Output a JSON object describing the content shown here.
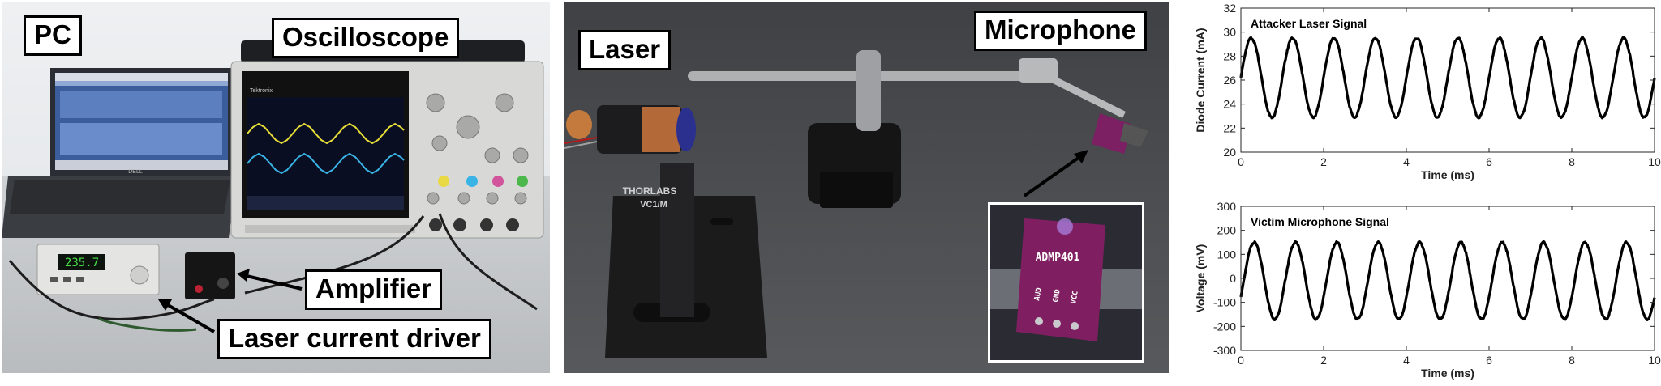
{
  "left_photo": {
    "labels": {
      "pc": "PC",
      "oscilloscope": "Oscilloscope",
      "amplifier": "Amplifier",
      "driver": "Laser current driver"
    },
    "driver_display": "235.7",
    "laptop_brand": "DELL",
    "scope_brand": "Tektronix"
  },
  "middle_photo": {
    "labels": {
      "laser": "Laser",
      "microphone": "Microphone"
    },
    "mount_brand": "THORLABS",
    "mount_model": "VC1/M",
    "inset": {
      "chip": "ADMP401",
      "pins": [
        "AUD",
        "GND",
        "VCC"
      ]
    }
  },
  "chart_data": [
    {
      "type": "line",
      "title": "Attacker Laser Signal",
      "xlabel": "Time (ms)",
      "ylabel": "Diode Current (mA)",
      "xlim": [
        0,
        10
      ],
      "ylim": [
        20,
        32
      ],
      "xticks": [
        0,
        2,
        4,
        6,
        8,
        10
      ],
      "yticks": [
        20,
        22,
        24,
        26,
        28,
        30,
        32
      ],
      "signal": {
        "form": "sine",
        "frequency_khz": 1,
        "offset": 26.2,
        "amplitude": 3.3,
        "phase_deg": 0
      },
      "grid": false,
      "color": "#000000"
    },
    {
      "type": "line",
      "title": "Victim Microphone Signal",
      "xlabel": "Time (ms)",
      "ylabel": "Voltage (mV)",
      "xlim": [
        0,
        10
      ],
      "ylim": [
        -300,
        300
      ],
      "xticks": [
        0,
        2,
        4,
        6,
        8,
        10
      ],
      "yticks": [
        -300,
        -200,
        -100,
        0,
        100,
        200,
        300
      ],
      "signal": {
        "form": "sine",
        "frequency_khz": 1,
        "offset": -10,
        "amplitude": 160,
        "phase_deg": -25
      },
      "grid": false,
      "color": "#000000"
    }
  ]
}
